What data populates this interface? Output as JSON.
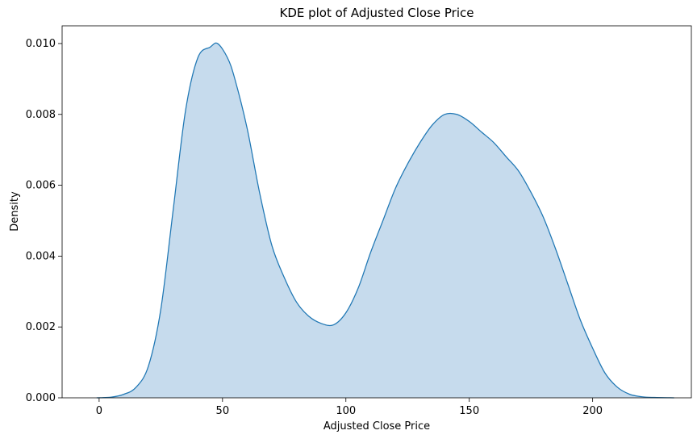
{
  "chart_data": {
    "type": "area",
    "title": "KDE plot of Adjusted Close Price",
    "xlabel": "Adjusted Close Price",
    "ylabel": "Density",
    "xlim": [
      -15,
      240
    ],
    "ylim": [
      0,
      0.0105
    ],
    "xticks": [
      0,
      50,
      100,
      150,
      200
    ],
    "xtick_labels": [
      "0",
      "50",
      "100",
      "150",
      "200"
    ],
    "yticks": [
      0,
      0.002,
      0.004,
      0.006,
      0.008,
      0.01
    ],
    "ytick_labels": [
      "0.000",
      "0.002",
      "0.004",
      "0.006",
      "0.008",
      "0.010"
    ],
    "grid": false,
    "legend": "none",
    "colors": {
      "line": "#1f77b4",
      "fill": "#c6dbed",
      "axes": "#000000"
    },
    "series": [
      {
        "x": [
          -1,
          5,
          10,
          15,
          20,
          25,
          30,
          35,
          40,
          45,
          48,
          52,
          55,
          60,
          65,
          70,
          75,
          80,
          85,
          90,
          95,
          100,
          105,
          110,
          115,
          120,
          125,
          130,
          135,
          140,
          145,
          150,
          155,
          160,
          165,
          170,
          175,
          180,
          185,
          190,
          195,
          200,
          205,
          210,
          215,
          220,
          225,
          233
        ],
        "y": [
          0,
          2e-05,
          0.0001,
          0.0003,
          0.0009,
          0.0025,
          0.0053,
          0.0081,
          0.0096,
          0.0099,
          0.01,
          0.0096,
          0.009,
          0.0076,
          0.0058,
          0.0043,
          0.0034,
          0.0027,
          0.0023,
          0.0021,
          0.00206,
          0.0024,
          0.0031,
          0.0041,
          0.005,
          0.0059,
          0.0066,
          0.0072,
          0.0077,
          0.008,
          0.008,
          0.0078,
          0.0075,
          0.0072,
          0.0068,
          0.0064,
          0.0058,
          0.0051,
          0.0042,
          0.0032,
          0.0022,
          0.0014,
          0.0007,
          0.0003,
          0.0001,
          3e-05,
          1e-05,
          0
        ]
      }
    ]
  }
}
